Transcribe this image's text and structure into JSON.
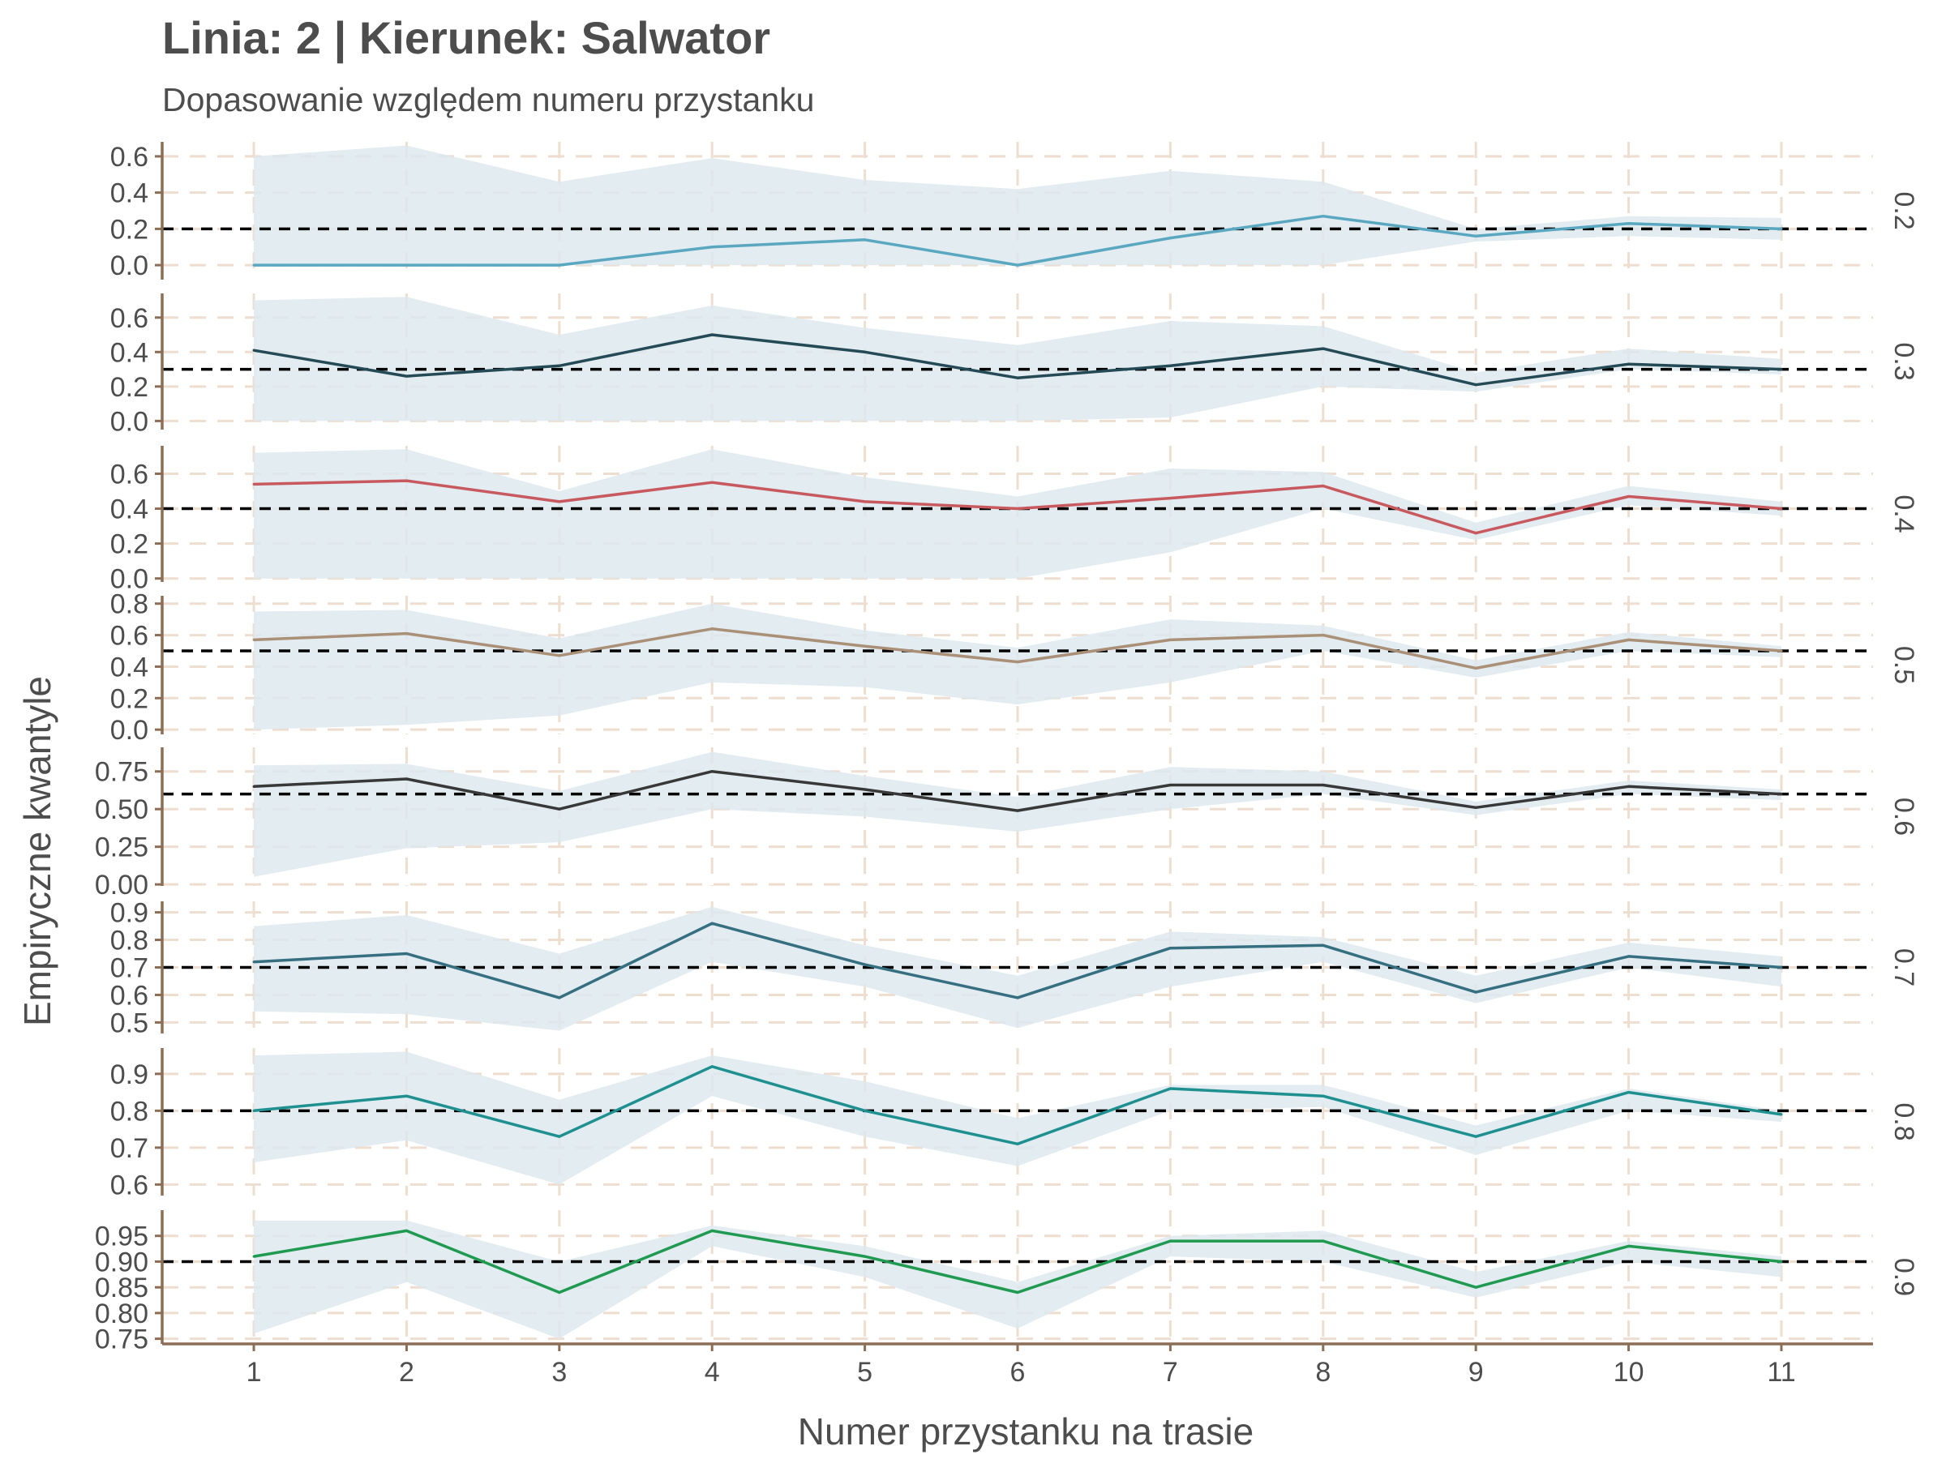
{
  "title": "Linia: 2 | Kierunek: Salwator",
  "subtitle": "Dopasowanie względem numeru przystanku",
  "chart_data": {
    "type": "line",
    "xlabel": "Numer przystanku na trasie",
    "ylabel": "Empiryczne kwantyle",
    "x": [
      1,
      2,
      3,
      4,
      5,
      6,
      7,
      8,
      9,
      10,
      11
    ],
    "xlim": [
      0.4,
      11.6
    ],
    "grid": true,
    "grid_style": "dashed",
    "colors": {
      "band": "#dde9ee",
      "grid": "#eeded0",
      "axis": "#8b6e55",
      "reference": "#000000"
    },
    "panels": [
      {
        "label": "0.2",
        "color": "#5aa7c0",
        "ylim": [
          -0.08,
          0.68
        ],
        "ticks": [
          0.0,
          0.2,
          0.4,
          0.6
        ],
        "tick_labels": [
          "0.0",
          "0.2",
          "0.4",
          "0.6"
        ],
        "reference": 0.2,
        "values": [
          0.0,
          0.0,
          0.0,
          0.1,
          0.14,
          0.0,
          0.15,
          0.27,
          0.16,
          0.23,
          0.2
        ],
        "lower": [
          0.0,
          0.0,
          0.0,
          0.0,
          0.0,
          0.0,
          0.0,
          0.0,
          0.13,
          0.16,
          0.14
        ],
        "upper": [
          0.6,
          0.66,
          0.46,
          0.59,
          0.47,
          0.42,
          0.52,
          0.46,
          0.2,
          0.27,
          0.26
        ]
      },
      {
        "label": "0.3",
        "color": "#244a56",
        "ylim": [
          -0.05,
          0.74
        ],
        "ticks": [
          0.0,
          0.2,
          0.4,
          0.6
        ],
        "tick_labels": [
          "0.0",
          "0.2",
          "0.4",
          "0.6"
        ],
        "reference": 0.3,
        "values": [
          0.41,
          0.26,
          0.32,
          0.5,
          0.4,
          0.25,
          0.32,
          0.42,
          0.21,
          0.33,
          0.3
        ],
        "lower": [
          0.0,
          0.0,
          0.0,
          0.0,
          0.0,
          0.0,
          0.02,
          0.2,
          0.17,
          0.3,
          0.27
        ],
        "upper": [
          0.7,
          0.72,
          0.5,
          0.67,
          0.54,
          0.44,
          0.58,
          0.55,
          0.28,
          0.42,
          0.36
        ]
      },
      {
        "label": "0.4",
        "color": "#c85a5f",
        "ylim": [
          -0.02,
          0.76
        ],
        "ticks": [
          0.0,
          0.2,
          0.4,
          0.6
        ],
        "tick_labels": [
          "0.0",
          "0.2",
          "0.4",
          "0.6"
        ],
        "reference": 0.4,
        "values": [
          0.54,
          0.56,
          0.44,
          0.55,
          0.44,
          0.4,
          0.46,
          0.53,
          0.26,
          0.47,
          0.4
        ],
        "lower": [
          0.0,
          0.0,
          0.0,
          0.0,
          0.0,
          0.0,
          0.15,
          0.4,
          0.22,
          0.42,
          0.36
        ],
        "upper": [
          0.72,
          0.74,
          0.5,
          0.74,
          0.58,
          0.47,
          0.63,
          0.61,
          0.32,
          0.53,
          0.44
        ]
      },
      {
        "label": "0.5",
        "color": "#a99077",
        "ylim": [
          -0.03,
          0.85
        ],
        "ticks": [
          0.0,
          0.2,
          0.4,
          0.6,
          0.8
        ],
        "tick_labels": [
          "0.0",
          "0.2",
          "0.4",
          "0.6",
          "0.8"
        ],
        "reference": 0.5,
        "values": [
          0.57,
          0.61,
          0.47,
          0.64,
          0.53,
          0.43,
          0.57,
          0.6,
          0.39,
          0.57,
          0.5
        ],
        "lower": [
          0.0,
          0.03,
          0.09,
          0.3,
          0.27,
          0.16,
          0.3,
          0.5,
          0.33,
          0.5,
          0.46
        ],
        "upper": [
          0.75,
          0.76,
          0.58,
          0.8,
          0.63,
          0.52,
          0.7,
          0.66,
          0.44,
          0.62,
          0.53
        ]
      },
      {
        "label": "0.6",
        "color": "#383838",
        "ylim": [
          -0.01,
          0.91
        ],
        "ticks": [
          0.0,
          0.25,
          0.5,
          0.75
        ],
        "tick_labels": [
          "0.00",
          "0.25",
          "0.50",
          "0.75"
        ],
        "reference": 0.6,
        "values": [
          0.65,
          0.7,
          0.5,
          0.75,
          0.63,
          0.49,
          0.66,
          0.66,
          0.51,
          0.65,
          0.6
        ],
        "lower": [
          0.05,
          0.24,
          0.28,
          0.5,
          0.45,
          0.35,
          0.5,
          0.6,
          0.46,
          0.6,
          0.56
        ],
        "upper": [
          0.79,
          0.8,
          0.62,
          0.88,
          0.72,
          0.58,
          0.78,
          0.75,
          0.55,
          0.69,
          0.63
        ]
      },
      {
        "label": "0.7",
        "color": "#356f80",
        "ylim": [
          0.46,
          0.94
        ],
        "ticks": [
          0.5,
          0.6,
          0.7,
          0.8,
          0.9
        ],
        "tick_labels": [
          "0.5",
          "0.6",
          "0.7",
          "0.8",
          "0.9"
        ],
        "reference": 0.7,
        "values": [
          0.72,
          0.75,
          0.59,
          0.86,
          0.71,
          0.59,
          0.77,
          0.78,
          0.61,
          0.74,
          0.7
        ],
        "lower": [
          0.54,
          0.53,
          0.47,
          0.72,
          0.63,
          0.48,
          0.63,
          0.72,
          0.57,
          0.7,
          0.63
        ],
        "upper": [
          0.85,
          0.89,
          0.75,
          0.92,
          0.78,
          0.67,
          0.83,
          0.81,
          0.67,
          0.79,
          0.74
        ]
      },
      {
        "label": "0.8",
        "color": "#1f9090",
        "ylim": [
          0.57,
          0.97
        ],
        "ticks": [
          0.6,
          0.7,
          0.8,
          0.9
        ],
        "tick_labels": [
          "0.6",
          "0.7",
          "0.8",
          "0.9"
        ],
        "reference": 0.8,
        "values": [
          0.8,
          0.84,
          0.73,
          0.92,
          0.8,
          0.71,
          0.86,
          0.84,
          0.73,
          0.85,
          0.79
        ],
        "lower": [
          0.66,
          0.72,
          0.6,
          0.84,
          0.73,
          0.65,
          0.8,
          0.81,
          0.68,
          0.8,
          0.77
        ],
        "upper": [
          0.95,
          0.96,
          0.83,
          0.95,
          0.88,
          0.78,
          0.87,
          0.87,
          0.76,
          0.86,
          0.8
        ]
      },
      {
        "label": "0.9",
        "color": "#1f9a50",
        "ylim": [
          0.74,
          1.0
        ],
        "ticks": [
          0.75,
          0.8,
          0.85,
          0.9,
          0.95
        ],
        "tick_labels": [
          "0.75",
          "0.80",
          "0.85",
          "0.90",
          "0.95"
        ],
        "reference": 0.9,
        "values": [
          0.91,
          0.96,
          0.84,
          0.96,
          0.91,
          0.84,
          0.94,
          0.94,
          0.85,
          0.93,
          0.9
        ],
        "lower": [
          0.76,
          0.86,
          0.75,
          0.93,
          0.87,
          0.77,
          0.91,
          0.9,
          0.83,
          0.9,
          0.87
        ],
        "upper": [
          0.98,
          0.98,
          0.9,
          0.97,
          0.93,
          0.86,
          0.95,
          0.96,
          0.88,
          0.94,
          0.91
        ]
      }
    ]
  }
}
